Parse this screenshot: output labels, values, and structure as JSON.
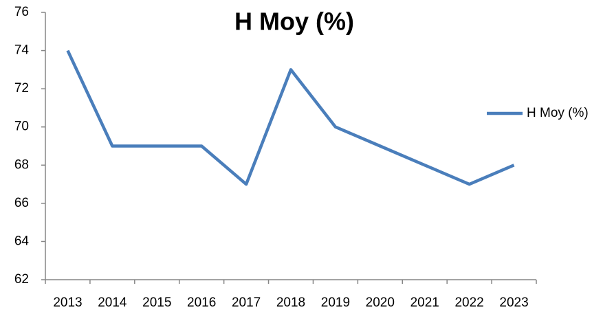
{
  "chart_data": {
    "type": "line",
    "title": "H Moy (%)",
    "categories": [
      "2013",
      "2014",
      "2015",
      "2016",
      "2017",
      "2018",
      "2019",
      "2020",
      "2021",
      "2022",
      "2023"
    ],
    "series": [
      {
        "name": "H Moy (%)",
        "color": "#4a7ebb",
        "values": [
          74,
          69,
          69,
          69,
          67,
          73,
          70,
          69,
          68,
          67,
          68
        ]
      }
    ],
    "ylim": [
      62,
      76
    ],
    "yticks": [
      62,
      64,
      66,
      68,
      70,
      72,
      74,
      76
    ],
    "grid": false,
    "legend": "right"
  }
}
